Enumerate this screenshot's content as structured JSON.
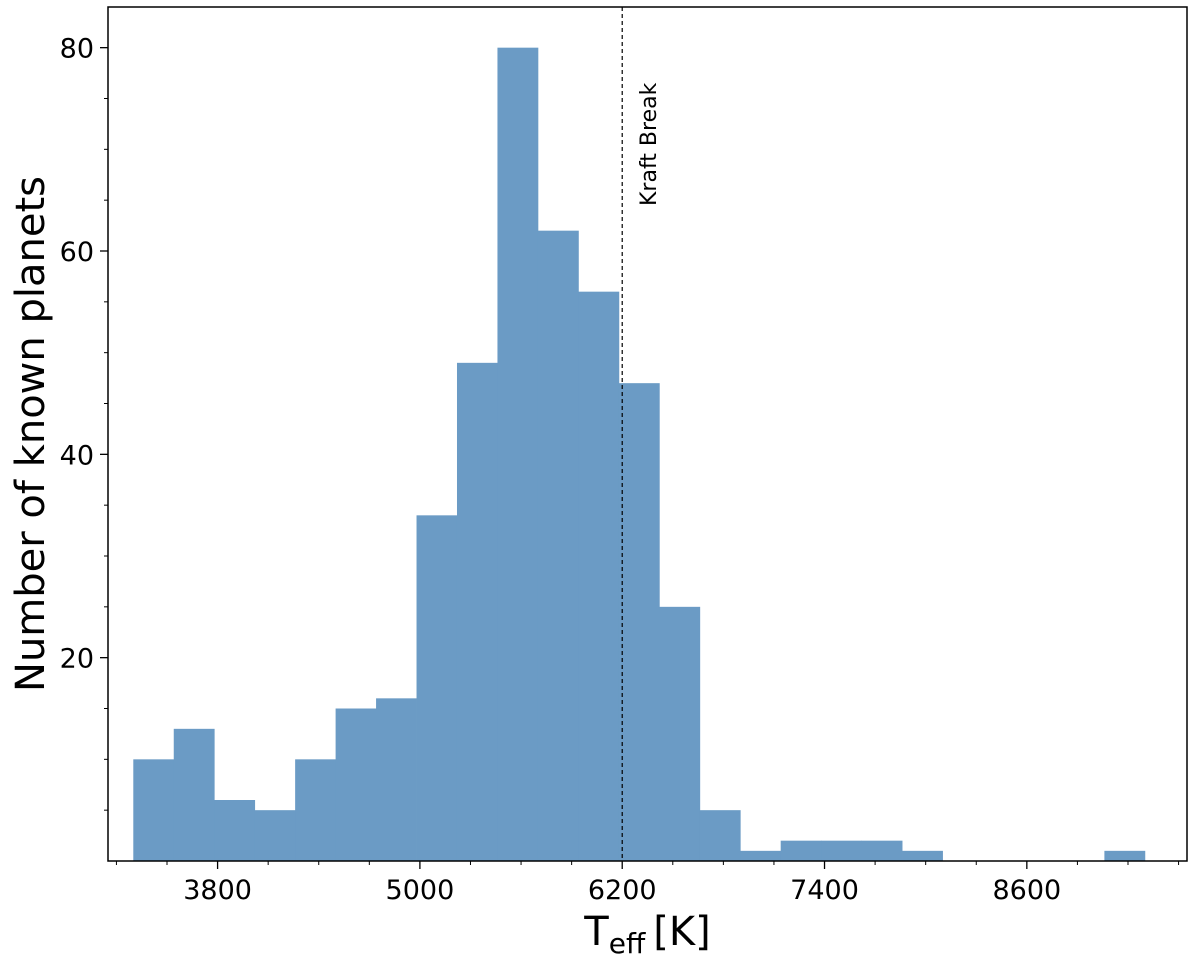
{
  "chart_data": {
    "type": "bar",
    "title": "",
    "xlabel": "T",
    "xlabel_sub": "eff",
    "xlabel_unit": "[K]",
    "ylabel": "Number of known planets",
    "xlim": [
      3150,
      9550
    ],
    "ylim": [
      0,
      84
    ],
    "xticks": [
      3800,
      5000,
      6200,
      7400,
      8600
    ],
    "yticks": [
      20,
      40,
      60,
      80
    ],
    "grid": false,
    "bar_color": "#6b9bc5",
    "bins": [
      {
        "x0": 3300,
        "x1": 3540,
        "value": 10
      },
      {
        "x0": 3540,
        "x1": 3780,
        "value": 13
      },
      {
        "x0": 3780,
        "x1": 4020,
        "value": 6
      },
      {
        "x0": 4020,
        "x1": 4260,
        "value": 5
      },
      {
        "x0": 4260,
        "x1": 4500,
        "value": 10
      },
      {
        "x0": 4500,
        "x1": 4740,
        "value": 15
      },
      {
        "x0": 4740,
        "x1": 4980,
        "value": 16
      },
      {
        "x0": 4980,
        "x1": 5220,
        "value": 34
      },
      {
        "x0": 5220,
        "x1": 5460,
        "value": 49
      },
      {
        "x0": 5460,
        "x1": 5700,
        "value": 80
      },
      {
        "x0": 5700,
        "x1": 5940,
        "value": 62
      },
      {
        "x0": 5940,
        "x1": 6180,
        "value": 56
      },
      {
        "x0": 6180,
        "x1": 6420,
        "value": 47
      },
      {
        "x0": 6420,
        "x1": 6660,
        "value": 25
      },
      {
        "x0": 6660,
        "x1": 6900,
        "value": 5
      },
      {
        "x0": 6900,
        "x1": 7140,
        "value": 1
      },
      {
        "x0": 7140,
        "x1": 7380,
        "value": 2
      },
      {
        "x0": 7380,
        "x1": 7620,
        "value": 2
      },
      {
        "x0": 7620,
        "x1": 7860,
        "value": 2
      },
      {
        "x0": 7860,
        "x1": 8100,
        "value": 1
      },
      {
        "x0": 8100,
        "x1": 8340,
        "value": 0
      },
      {
        "x0": 8340,
        "x1": 8580,
        "value": 0
      },
      {
        "x0": 8580,
        "x1": 8820,
        "value": 0
      },
      {
        "x0": 8820,
        "x1": 9060,
        "value": 0
      },
      {
        "x0": 9060,
        "x1": 9300,
        "value": 1
      }
    ],
    "annotations": [
      {
        "type": "vline",
        "x": 6200,
        "style": "dashed",
        "label": "Kraft Break"
      }
    ]
  }
}
